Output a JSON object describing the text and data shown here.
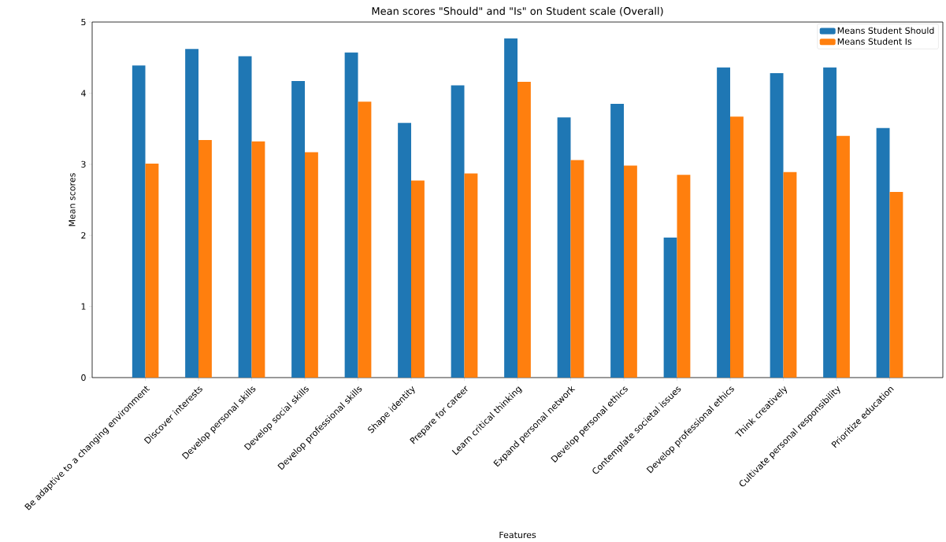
{
  "chart_data": {
    "type": "bar",
    "title": "Mean scores \"Should\" and \"Is\" on Student scale (Overall)",
    "xlabel": "Features",
    "ylabel": "Mean scores",
    "categories": [
      "Be adaptive to a changing environment",
      "Discover interests",
      "Develop personal skills",
      "Develop social skills",
      "Develop professional skills",
      "Shape identity",
      "Prepare for career",
      "Learn critical thinking",
      "Expand personal network",
      "Develop personal ethics",
      "Contemplate societal issues",
      "Develop professional ethics",
      "Think creatively",
      "Cultivate personal responsibility",
      "Prioritize education"
    ],
    "series": [
      {
        "name": "Means Student Should",
        "color": "#1f77b4",
        "values": [
          4.39,
          4.62,
          4.52,
          4.17,
          4.57,
          3.58,
          4.11,
          4.77,
          3.66,
          3.85,
          1.97,
          4.36,
          4.28,
          4.36,
          3.51
        ]
      },
      {
        "name": "Means Student Is",
        "color": "#ff7f0e",
        "values": [
          3.01,
          3.34,
          3.32,
          3.17,
          3.88,
          2.77,
          2.87,
          4.16,
          3.06,
          2.98,
          2.85,
          3.67,
          2.89,
          3.4,
          2.61
        ]
      }
    ],
    "ylim": [
      0,
      5
    ],
    "yticks": [
      0,
      1,
      2,
      3,
      4,
      5
    ],
    "legend": "top right"
  }
}
